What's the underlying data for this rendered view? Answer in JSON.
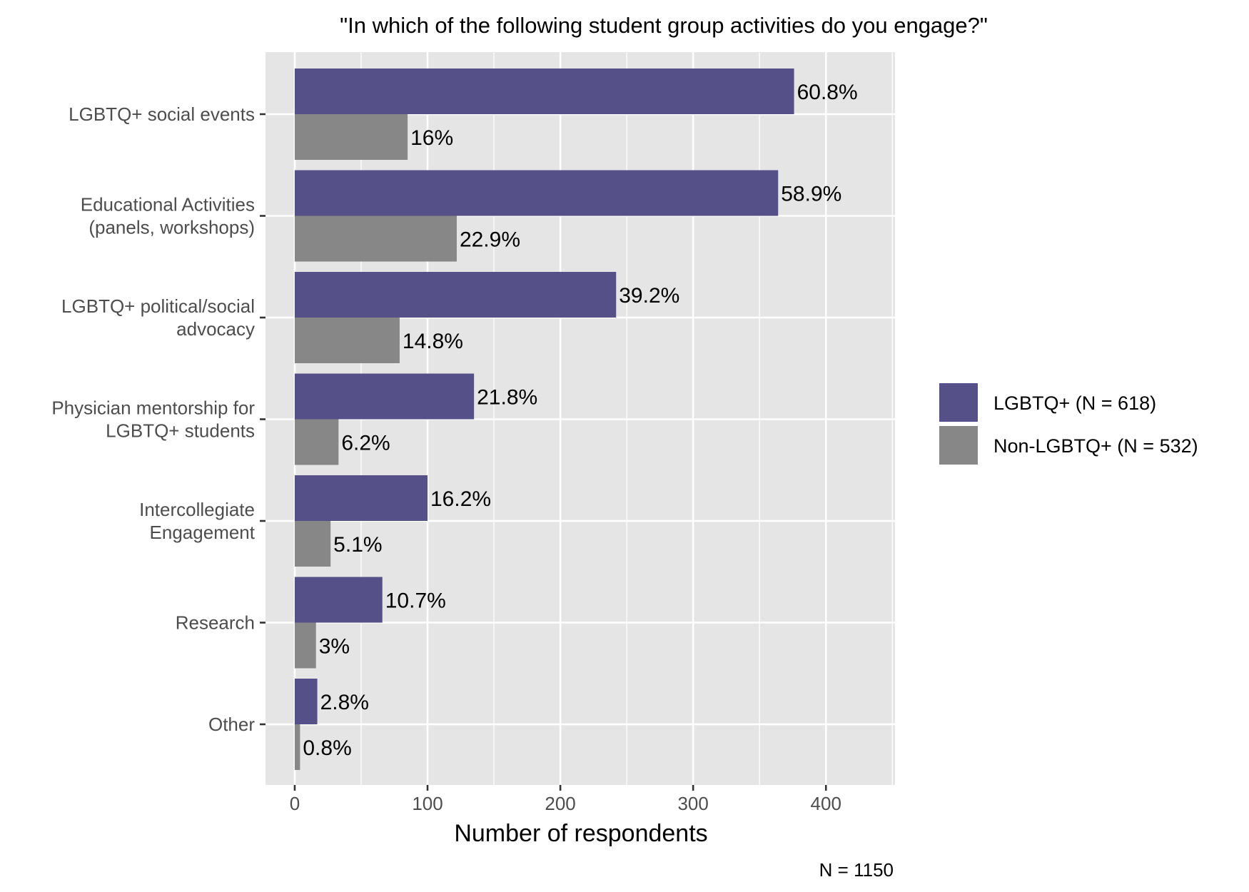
{
  "chart_data": {
    "type": "bar",
    "orientation": "horizontal",
    "title": "\"In which of the following student group activities do you engage?\"",
    "xlabel": "Number of respondents",
    "ylabel": "",
    "caption": "N = 1150",
    "xlim": [
      -22,
      452
    ],
    "x_ticks": [
      0,
      100,
      200,
      300,
      400
    ],
    "x_tick_labels": [
      "0",
      "100",
      "200",
      "300",
      "400"
    ],
    "grid": true,
    "legend_position": "right",
    "categories": [
      [
        "LGBTQ+ social events"
      ],
      [
        "Educational Activities",
        "(panels, workshops)"
      ],
      [
        "LGBTQ+ political/social",
        "advocacy"
      ],
      [
        "Physician mentorship for",
        "LGBTQ+ students"
      ],
      [
        "Intercollegiate",
        "Engagement"
      ],
      [
        "Research"
      ],
      [
        "Other"
      ]
    ],
    "series": [
      {
        "name": "LGBTQ+ (N = 618)",
        "color": "#555088",
        "values": [
          376,
          364,
          242,
          135,
          100,
          66,
          17
        ],
        "labels": [
          "60.8%",
          "58.9%",
          "39.2%",
          "21.8%",
          "16.2%",
          "10.7%",
          "2.8%"
        ]
      },
      {
        "name": "Non-LGBTQ+ (N = 532)",
        "color": "#878787",
        "values": [
          85,
          122,
          79,
          33,
          27,
          16,
          4
        ],
        "labels": [
          "16%",
          "22.9%",
          "14.8%",
          "6.2%",
          "5.1%",
          "3%",
          "0.8%"
        ]
      }
    ]
  }
}
